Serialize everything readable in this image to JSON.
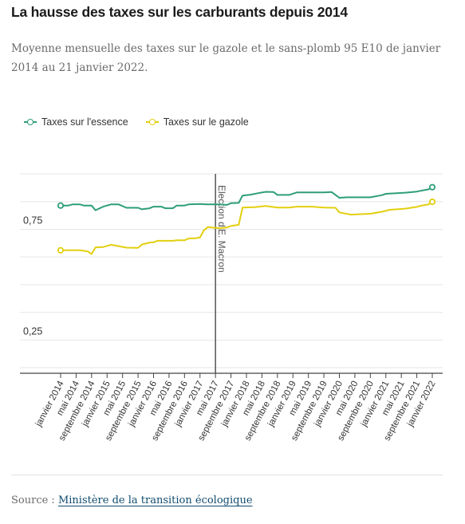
{
  "title": "La hausse des taxes sur les carburants depuis 2014",
  "subtitle": "Moyenne mensuelle des taxes sur le gazole et le sans-plomb 95 E10 de janvier 2014 au 21 janvier 2022.",
  "source": {
    "prefix": "Source :",
    "link_text": "Ministère de la transition écologique"
  },
  "colors": {
    "essence": "#2e9e78",
    "gazole": "#e3cf0e",
    "grid": "#e6e6e6",
    "axis": "#444444",
    "annotation": "#555555"
  },
  "chart_data": {
    "type": "line",
    "title": "",
    "xlabel": "",
    "ylabel": "",
    "ylim": [
      0.1,
      1.0
    ],
    "yticks": [
      0.25,
      0.75
    ],
    "ytick_labels": [
      "0,25",
      "0,75"
    ],
    "grid": true,
    "legend_position": "top-left",
    "xtick_labels": [
      "janvier 2014",
      "mai 2014",
      "septembre 2014",
      "janvier 2015",
      "mai 2015",
      "septembre 2015",
      "janvier 2016",
      "mai 2016",
      "septembre 2016",
      "janvier 2017",
      "mai 2017",
      "septembre 2017",
      "janvier 2018",
      "mai 2018",
      "septembre 2018",
      "janvier 2019",
      "mai 2019",
      "septembre 2019",
      "janvier 2020",
      "mai 2020",
      "septembre 2020",
      "janvier 2021",
      "mai 2021",
      "septembre 2021",
      "janvier 2022"
    ],
    "annotation": {
      "label": "Election d'E. Macron",
      "x": "mai 2017"
    },
    "series": [
      {
        "name": "Taxes sur l'essence",
        "color": "#2e9e78",
        "points": [
          [
            "2014-01",
            0.857
          ],
          [
            "2014-03",
            0.857
          ],
          [
            "2014-04",
            0.862
          ],
          [
            "2014-06",
            0.862
          ],
          [
            "2014-07",
            0.857
          ],
          [
            "2014-09",
            0.857
          ],
          [
            "2014-10",
            0.836
          ],
          [
            "2014-12",
            0.852
          ],
          [
            "2015-01",
            0.857
          ],
          [
            "2015-02",
            0.862
          ],
          [
            "2015-04",
            0.862
          ],
          [
            "2015-06",
            0.847
          ],
          [
            "2015-09",
            0.847
          ],
          [
            "2015-10",
            0.84
          ],
          [
            "2015-12",
            0.845
          ],
          [
            "2016-01",
            0.852
          ],
          [
            "2016-03",
            0.852
          ],
          [
            "2016-04",
            0.845
          ],
          [
            "2016-06",
            0.845
          ],
          [
            "2016-07",
            0.857
          ],
          [
            "2016-09",
            0.857
          ],
          [
            "2016-10",
            0.862
          ],
          [
            "2017-01",
            0.864
          ],
          [
            "2017-03",
            0.862
          ],
          [
            "2017-06",
            0.862
          ],
          [
            "2017-08",
            0.86
          ],
          [
            "2017-09",
            0.868
          ],
          [
            "2017-11",
            0.869
          ],
          [
            "2017-12",
            0.902
          ],
          [
            "2018-02",
            0.906
          ],
          [
            "2018-04",
            0.913
          ],
          [
            "2018-06",
            0.919
          ],
          [
            "2018-08",
            0.918
          ],
          [
            "2018-09",
            0.905
          ],
          [
            "2018-12",
            0.905
          ],
          [
            "2019-02",
            0.916
          ],
          [
            "2019-06",
            0.916
          ],
          [
            "2019-09",
            0.916
          ],
          [
            "2019-11",
            0.918
          ],
          [
            "2019-12",
            0.905
          ],
          [
            "2020-01",
            0.892
          ],
          [
            "2020-03",
            0.894
          ],
          [
            "2020-05",
            0.894
          ],
          [
            "2020-09",
            0.894
          ],
          [
            "2020-12",
            0.904
          ],
          [
            "2021-01",
            0.91
          ],
          [
            "2021-06",
            0.915
          ],
          [
            "2021-09",
            0.92
          ],
          [
            "2021-12",
            0.93
          ],
          [
            "2022-01",
            0.94
          ]
        ]
      },
      {
        "name": "Taxes sur le gazole",
        "color": "#e3cf0e",
        "points": [
          [
            "2014-01",
            0.655
          ],
          [
            "2014-03",
            0.655
          ],
          [
            "2014-06",
            0.655
          ],
          [
            "2014-08",
            0.65
          ],
          [
            "2014-09",
            0.638
          ],
          [
            "2014-10",
            0.668
          ],
          [
            "2014-12",
            0.67
          ],
          [
            "2015-01",
            0.675
          ],
          [
            "2015-02",
            0.68
          ],
          [
            "2015-04",
            0.674
          ],
          [
            "2015-06",
            0.667
          ],
          [
            "2015-09",
            0.666
          ],
          [
            "2015-10",
            0.681
          ],
          [
            "2015-12",
            0.69
          ],
          [
            "2016-01",
            0.691
          ],
          [
            "2016-02",
            0.698
          ],
          [
            "2016-06",
            0.698
          ],
          [
            "2016-07",
            0.7
          ],
          [
            "2016-09",
            0.7
          ],
          [
            "2016-10",
            0.708
          ],
          [
            "2016-12",
            0.71
          ],
          [
            "2017-01",
            0.713
          ],
          [
            "2017-02",
            0.745
          ],
          [
            "2017-03",
            0.76
          ],
          [
            "2017-06",
            0.755
          ],
          [
            "2017-08",
            0.758
          ],
          [
            "2017-09",
            0.765
          ],
          [
            "2017-11",
            0.77
          ],
          [
            "2017-12",
            0.848
          ],
          [
            "2018-03",
            0.85
          ],
          [
            "2018-06",
            0.855
          ],
          [
            "2018-09",
            0.848
          ],
          [
            "2018-12",
            0.848
          ],
          [
            "2019-02",
            0.852
          ],
          [
            "2019-06",
            0.852
          ],
          [
            "2019-09",
            0.848
          ],
          [
            "2019-12",
            0.847
          ],
          [
            "2020-01",
            0.826
          ],
          [
            "2020-04",
            0.816
          ],
          [
            "2020-06",
            0.818
          ],
          [
            "2020-09",
            0.82
          ],
          [
            "2020-12",
            0.829
          ],
          [
            "2021-02",
            0.838
          ],
          [
            "2021-06",
            0.843
          ],
          [
            "2021-09",
            0.851
          ],
          [
            "2021-10",
            0.856
          ],
          [
            "2021-12",
            0.862
          ],
          [
            "2022-01",
            0.874
          ]
        ]
      }
    ]
  }
}
